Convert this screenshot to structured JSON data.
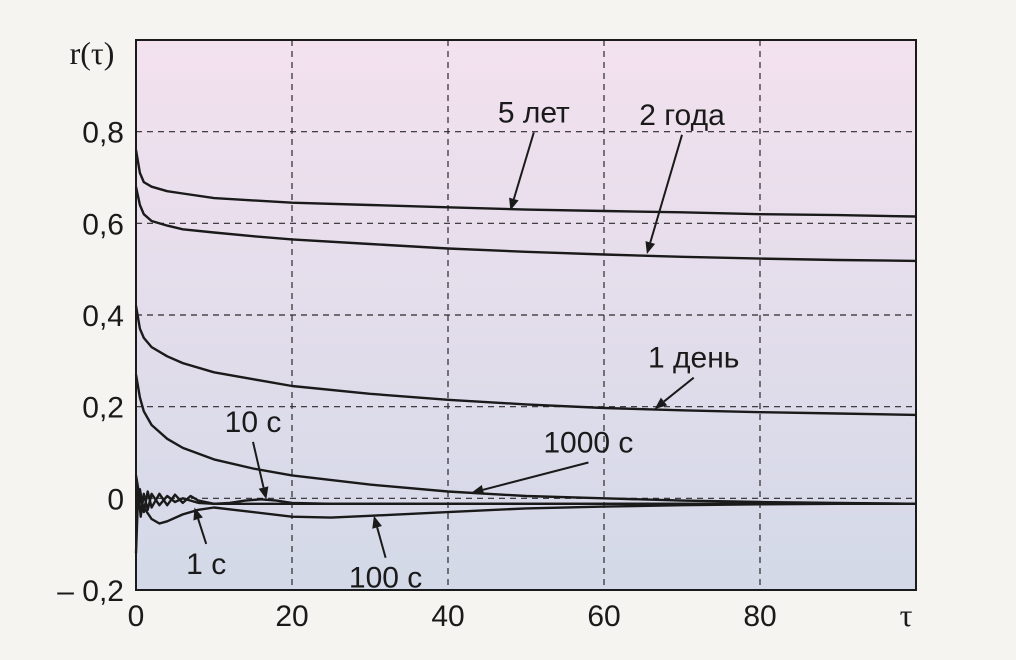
{
  "chart_data": {
    "type": "line",
    "title": "",
    "xlabel": "τ",
    "ylabel": "r(τ)",
    "xlim": [
      0,
      100
    ],
    "ylim": [
      -0.2,
      1.0
    ],
    "grid": true,
    "colors": {
      "background_top": "#f3e1ee",
      "background_bottom": "#d3d9e8",
      "line": "#1a1a1a",
      "page": "#f5f4f0"
    },
    "x_ticks": [
      "0",
      "20",
      "40",
      "60",
      "80"
    ],
    "x_tick_values": [
      0,
      20,
      40,
      60,
      80
    ],
    "y_ticks": [
      "– 0,2",
      "0",
      "0,2",
      "0,4",
      "0,6",
      "0,8"
    ],
    "y_tick_values": [
      -0.2,
      0,
      0.2,
      0.4,
      0.6,
      0.8
    ],
    "series": [
      {
        "name": "5 лет",
        "x": [
          0,
          0.5,
          1,
          2,
          4,
          6,
          10,
          15,
          20,
          30,
          40,
          50,
          60,
          70,
          80,
          90,
          100
        ],
        "y": [
          0.76,
          0.71,
          0.69,
          0.68,
          0.67,
          0.665,
          0.655,
          0.65,
          0.645,
          0.64,
          0.635,
          0.63,
          0.627,
          0.624,
          0.62,
          0.618,
          0.615
        ]
      },
      {
        "name": "2 года",
        "x": [
          0,
          0.5,
          1,
          2,
          4,
          6,
          10,
          15,
          20,
          30,
          40,
          50,
          60,
          70,
          80,
          90,
          100
        ],
        "y": [
          0.68,
          0.64,
          0.62,
          0.605,
          0.595,
          0.587,
          0.58,
          0.572,
          0.565,
          0.555,
          0.545,
          0.538,
          0.532,
          0.527,
          0.523,
          0.52,
          0.518
        ]
      },
      {
        "name": "1 день",
        "x": [
          0,
          0.5,
          1,
          2,
          4,
          6,
          10,
          15,
          20,
          30,
          40,
          50,
          60,
          70,
          80,
          90,
          100
        ],
        "y": [
          0.42,
          0.37,
          0.35,
          0.33,
          0.31,
          0.295,
          0.275,
          0.26,
          0.245,
          0.228,
          0.215,
          0.205,
          0.197,
          0.192,
          0.188,
          0.185,
          0.182
        ]
      },
      {
        "name": "1000 с",
        "x": [
          0,
          0.5,
          1,
          2,
          4,
          6,
          10,
          15,
          20,
          30,
          40,
          50,
          60,
          70,
          80,
          90,
          100
        ],
        "y": [
          0.27,
          0.22,
          0.19,
          0.16,
          0.13,
          0.11,
          0.085,
          0.065,
          0.05,
          0.03,
          0.015,
          0.005,
          0.0,
          -0.005,
          -0.008,
          -0.01,
          -0.012
        ]
      },
      {
        "name": "100 с",
        "x": [
          0,
          0.5,
          1,
          2,
          3,
          4,
          6,
          8,
          10,
          15,
          20,
          25,
          30,
          40,
          50,
          60,
          70,
          80,
          90,
          100
        ],
        "y": [
          0.05,
          0.0,
          -0.02,
          -0.045,
          -0.055,
          -0.05,
          -0.035,
          -0.025,
          -0.02,
          -0.03,
          -0.04,
          -0.042,
          -0.038,
          -0.03,
          -0.022,
          -0.018,
          -0.015,
          -0.013,
          -0.012,
          -0.012
        ]
      },
      {
        "name": "10 с",
        "x": [
          0,
          0.5,
          1,
          1.5,
          2,
          3,
          4,
          5,
          6,
          7,
          8,
          10,
          12,
          14,
          16,
          18,
          20,
          25,
          30,
          40,
          50,
          60,
          70,
          80,
          90,
          100
        ],
        "y": [
          0.0,
          0.02,
          -0.03,
          0.015,
          -0.02,
          0.01,
          -0.015,
          0.008,
          -0.01,
          0.005,
          -0.005,
          -0.012,
          -0.01,
          -0.005,
          -0.002,
          -0.005,
          -0.01,
          -0.012,
          -0.012,
          -0.012,
          -0.012,
          -0.012,
          -0.012,
          -0.012,
          -0.012,
          -0.012
        ]
      },
      {
        "name": "1 с",
        "x": [
          0,
          0.3,
          0.6,
          1,
          1.5,
          2,
          3,
          4,
          5,
          6,
          7,
          8,
          10,
          15,
          20,
          30,
          40,
          50,
          60,
          70,
          80,
          90,
          100
        ],
        "y": [
          -0.12,
          0.02,
          -0.04,
          0.01,
          -0.025,
          0.01,
          -0.015,
          0.005,
          -0.008,
          0.0,
          -0.005,
          -0.01,
          -0.012,
          -0.012,
          -0.012,
          -0.012,
          -0.012,
          -0.012,
          -0.012,
          -0.012,
          -0.012,
          -0.012,
          -0.012
        ]
      }
    ],
    "annotations": [
      {
        "text": "5 лет",
        "label_at": [
          51,
          0.82
        ],
        "arrow_to": [
          48,
          0.628
        ]
      },
      {
        "text": "2 года",
        "label_at": [
          70,
          0.815
        ],
        "arrow_to": [
          65.5,
          0.533
        ]
      },
      {
        "text": "1 день",
        "label_at": [
          71.5,
          0.285
        ],
        "arrow_to": [
          66.5,
          0.195
        ]
      },
      {
        "text": "1000 с",
        "label_at": [
          58,
          0.1
        ],
        "arrow_to": [
          43,
          0.012
        ]
      },
      {
        "text": "10 с",
        "label_at": [
          15,
          0.145
        ],
        "arrow_to": [
          16.7,
          -0.002
        ]
      },
      {
        "text": "1 с",
        "label_at": [
          9,
          -0.165
        ],
        "arrow_to": [
          7.5,
          -0.02
        ]
      },
      {
        "text": "100 с",
        "label_at": [
          32,
          -0.195
        ],
        "arrow_to": [
          30.5,
          -0.038
        ]
      }
    ]
  }
}
